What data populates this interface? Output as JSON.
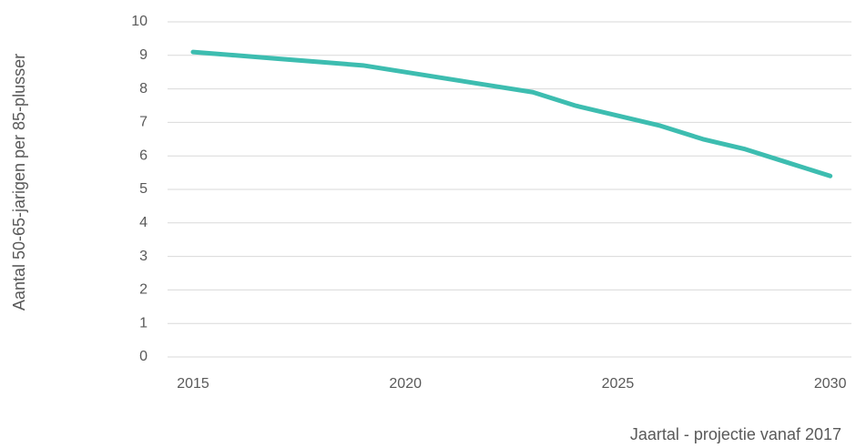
{
  "chart_data": {
    "type": "line",
    "x_label": "Jaartal - projectie vanaf 2017",
    "y_label": "Aantal 50-65-jarigen per 85-plusser",
    "x": [
      2015,
      2016,
      2017,
      2018,
      2019,
      2020,
      2021,
      2022,
      2023,
      2024,
      2025,
      2026,
      2027,
      2028,
      2029,
      2030
    ],
    "series": [
      {
        "name": null,
        "color": "#3dbdb0",
        "values": [
          9.1,
          9.0,
          8.9,
          8.8,
          8.7,
          8.5,
          8.3,
          8.1,
          7.9,
          7.5,
          7.2,
          6.9,
          6.5,
          6.2,
          5.8,
          5.4
        ]
      }
    ],
    "xlim": [
      2014.4,
      2030.5
    ],
    "xticks": [
      2015,
      2020,
      2025,
      2030
    ],
    "ylim": [
      0,
      10
    ],
    "yticks": [
      0,
      1,
      2,
      3,
      4,
      5,
      6,
      7,
      8,
      9,
      10
    ],
    "grid": true
  }
}
